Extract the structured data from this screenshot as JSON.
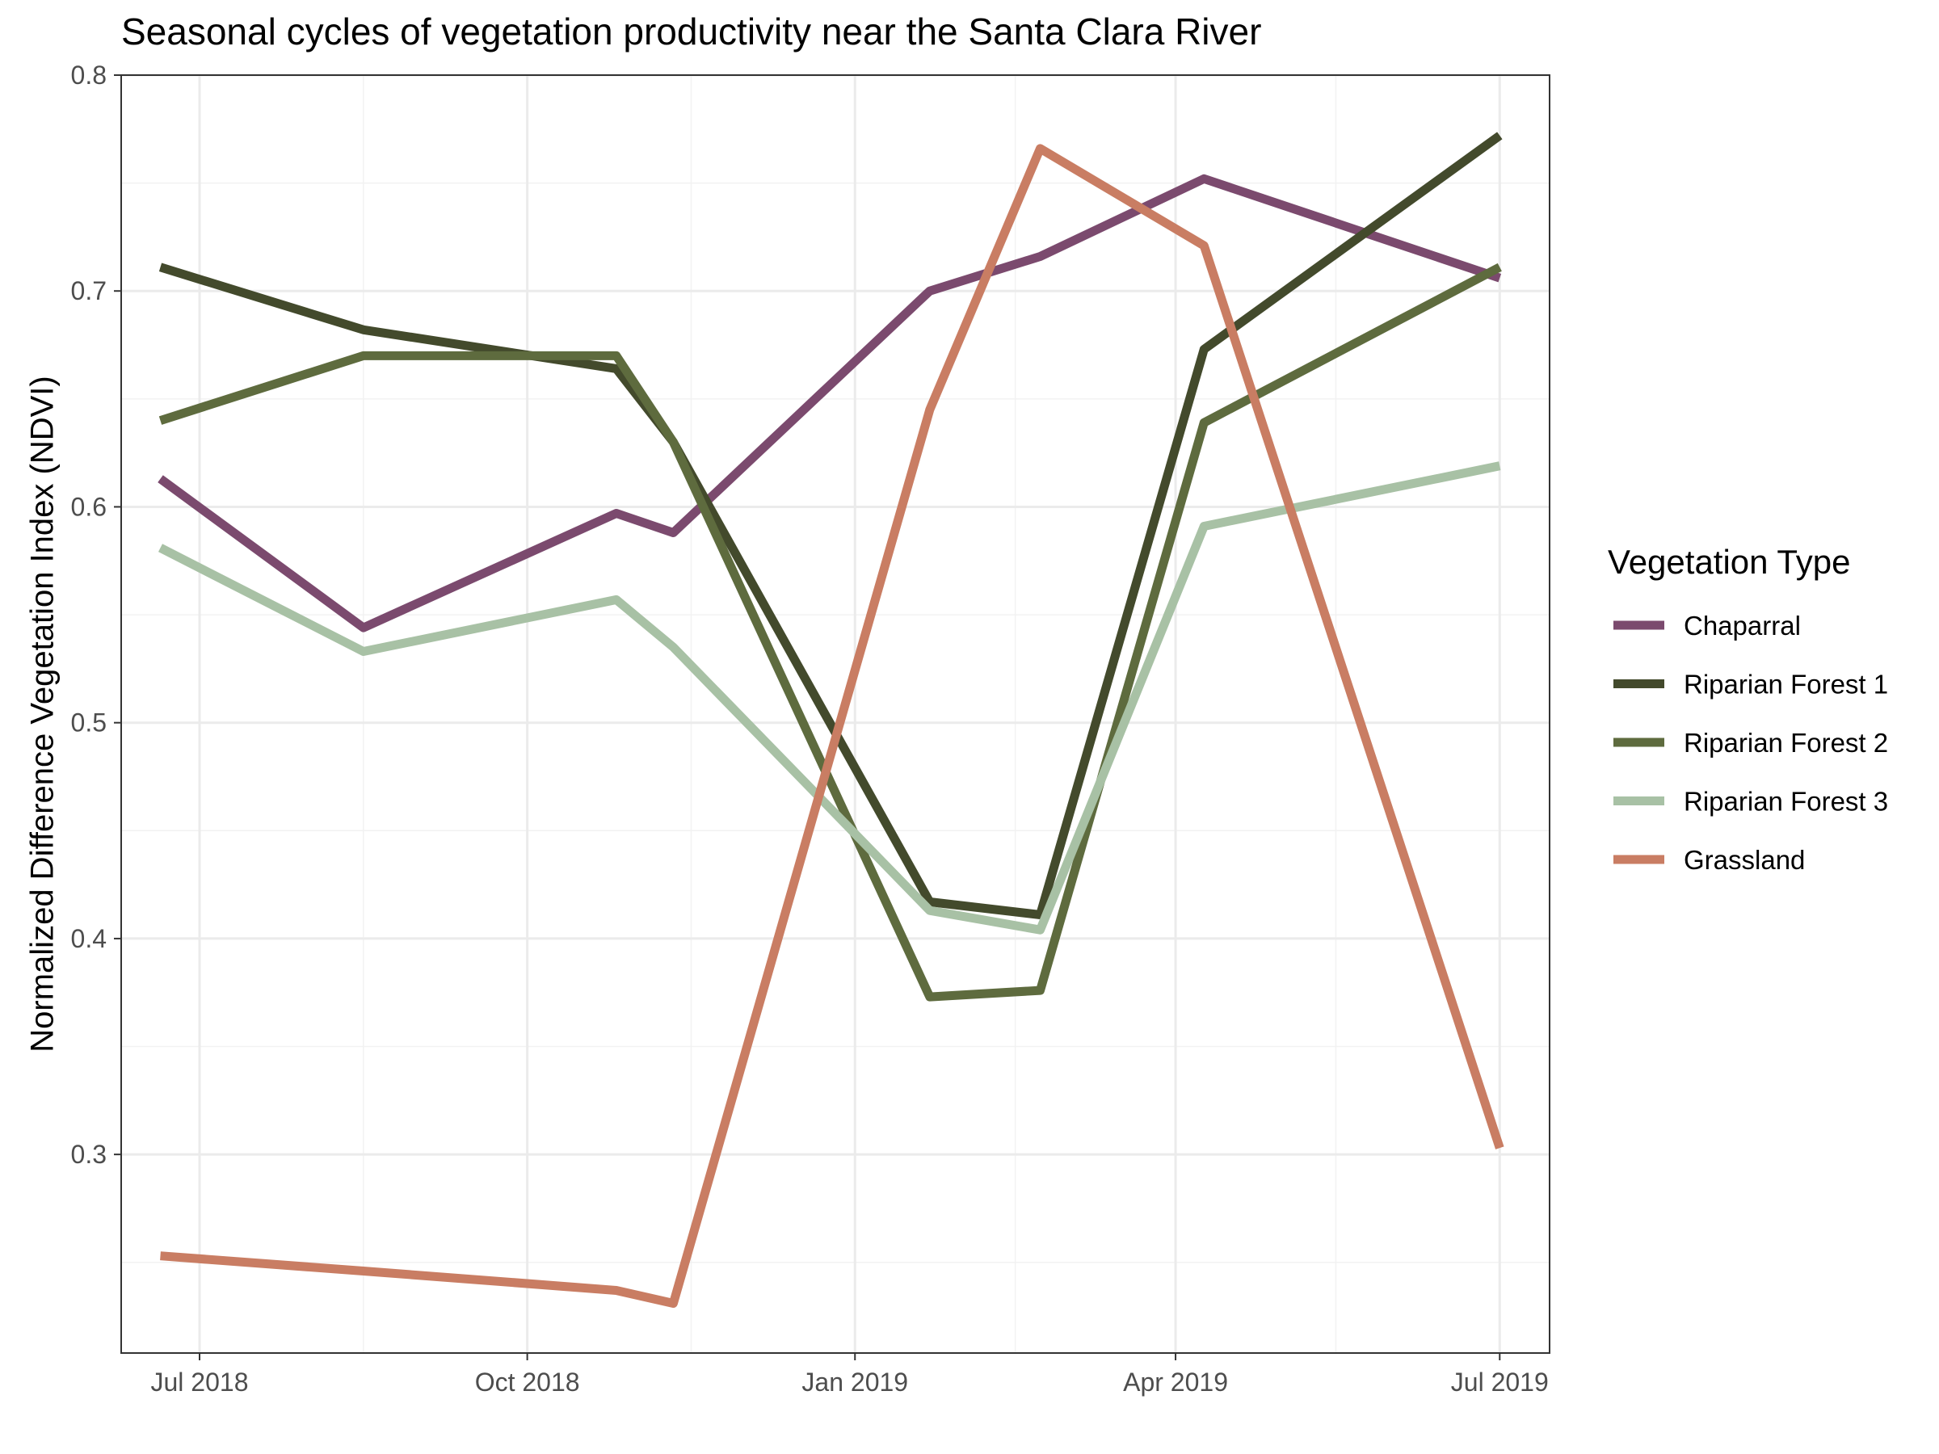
{
  "chart_data": {
    "type": "line",
    "title": "Seasonal cycles of vegetation productivity near the Santa Clara River",
    "xlabel": "",
    "ylabel": "Normalized Difference Vegetation Index (NDVI)",
    "legend_title": "Vegetation Type",
    "legend_position": "right",
    "grid": true,
    "x_type": "date",
    "xlim": [
      "2018-06-09",
      "2019-07-15"
    ],
    "ylim": [
      0.208,
      0.8
    ],
    "y_ticks": [
      0.3,
      0.4,
      0.5,
      0.6,
      0.7,
      0.8
    ],
    "y_tick_labels": [
      "0.3",
      "0.4",
      "0.5",
      "0.6",
      "0.7",
      "0.8"
    ],
    "x_ticks": [
      "2018-07-01",
      "2018-10-01",
      "2019-01-01",
      "2019-04-01",
      "2019-07-01"
    ],
    "x_tick_labels": [
      "Jul 2018",
      "Oct 2018",
      "Jan 2019",
      "Apr 2019",
      "Jul 2019"
    ],
    "x_minor_ticks": [
      "2018-08-16",
      "2018-11-16",
      "2019-02-15",
      "2019-05-16"
    ],
    "x": [
      "2018-06-20",
      "2018-08-16",
      "2018-10-26",
      "2018-11-11",
      "2019-01-22",
      "2019-02-22",
      "2019-04-09",
      "2019-07-01"
    ],
    "series": [
      {
        "name": "Chaparral",
        "color": "#7b4a6e",
        "values": [
          0.613,
          0.544,
          0.597,
          0.588,
          0.7,
          0.716,
          0.752,
          0.706
        ]
      },
      {
        "name": "Riparian Forest 1",
        "color": "#434a2c",
        "values": [
          0.711,
          0.682,
          0.664,
          0.63,
          0.417,
          0.411,
          0.673,
          0.772
        ]
      },
      {
        "name": "Riparian Forest 2",
        "color": "#5e6b3e",
        "values": [
          0.64,
          0.67,
          0.67,
          0.63,
          0.373,
          0.376,
          0.639,
          0.711
        ]
      },
      {
        "name": "Riparian Forest 3",
        "color": "#a8c1a5",
        "values": [
          0.581,
          0.533,
          0.557,
          0.535,
          0.413,
          0.404,
          0.591,
          0.619
        ]
      },
      {
        "name": "Grassland",
        "color": "#c97d63",
        "values": [
          0.253,
          0.246,
          0.237,
          0.231,
          0.645,
          0.766,
          0.721,
          0.303
        ]
      }
    ]
  }
}
